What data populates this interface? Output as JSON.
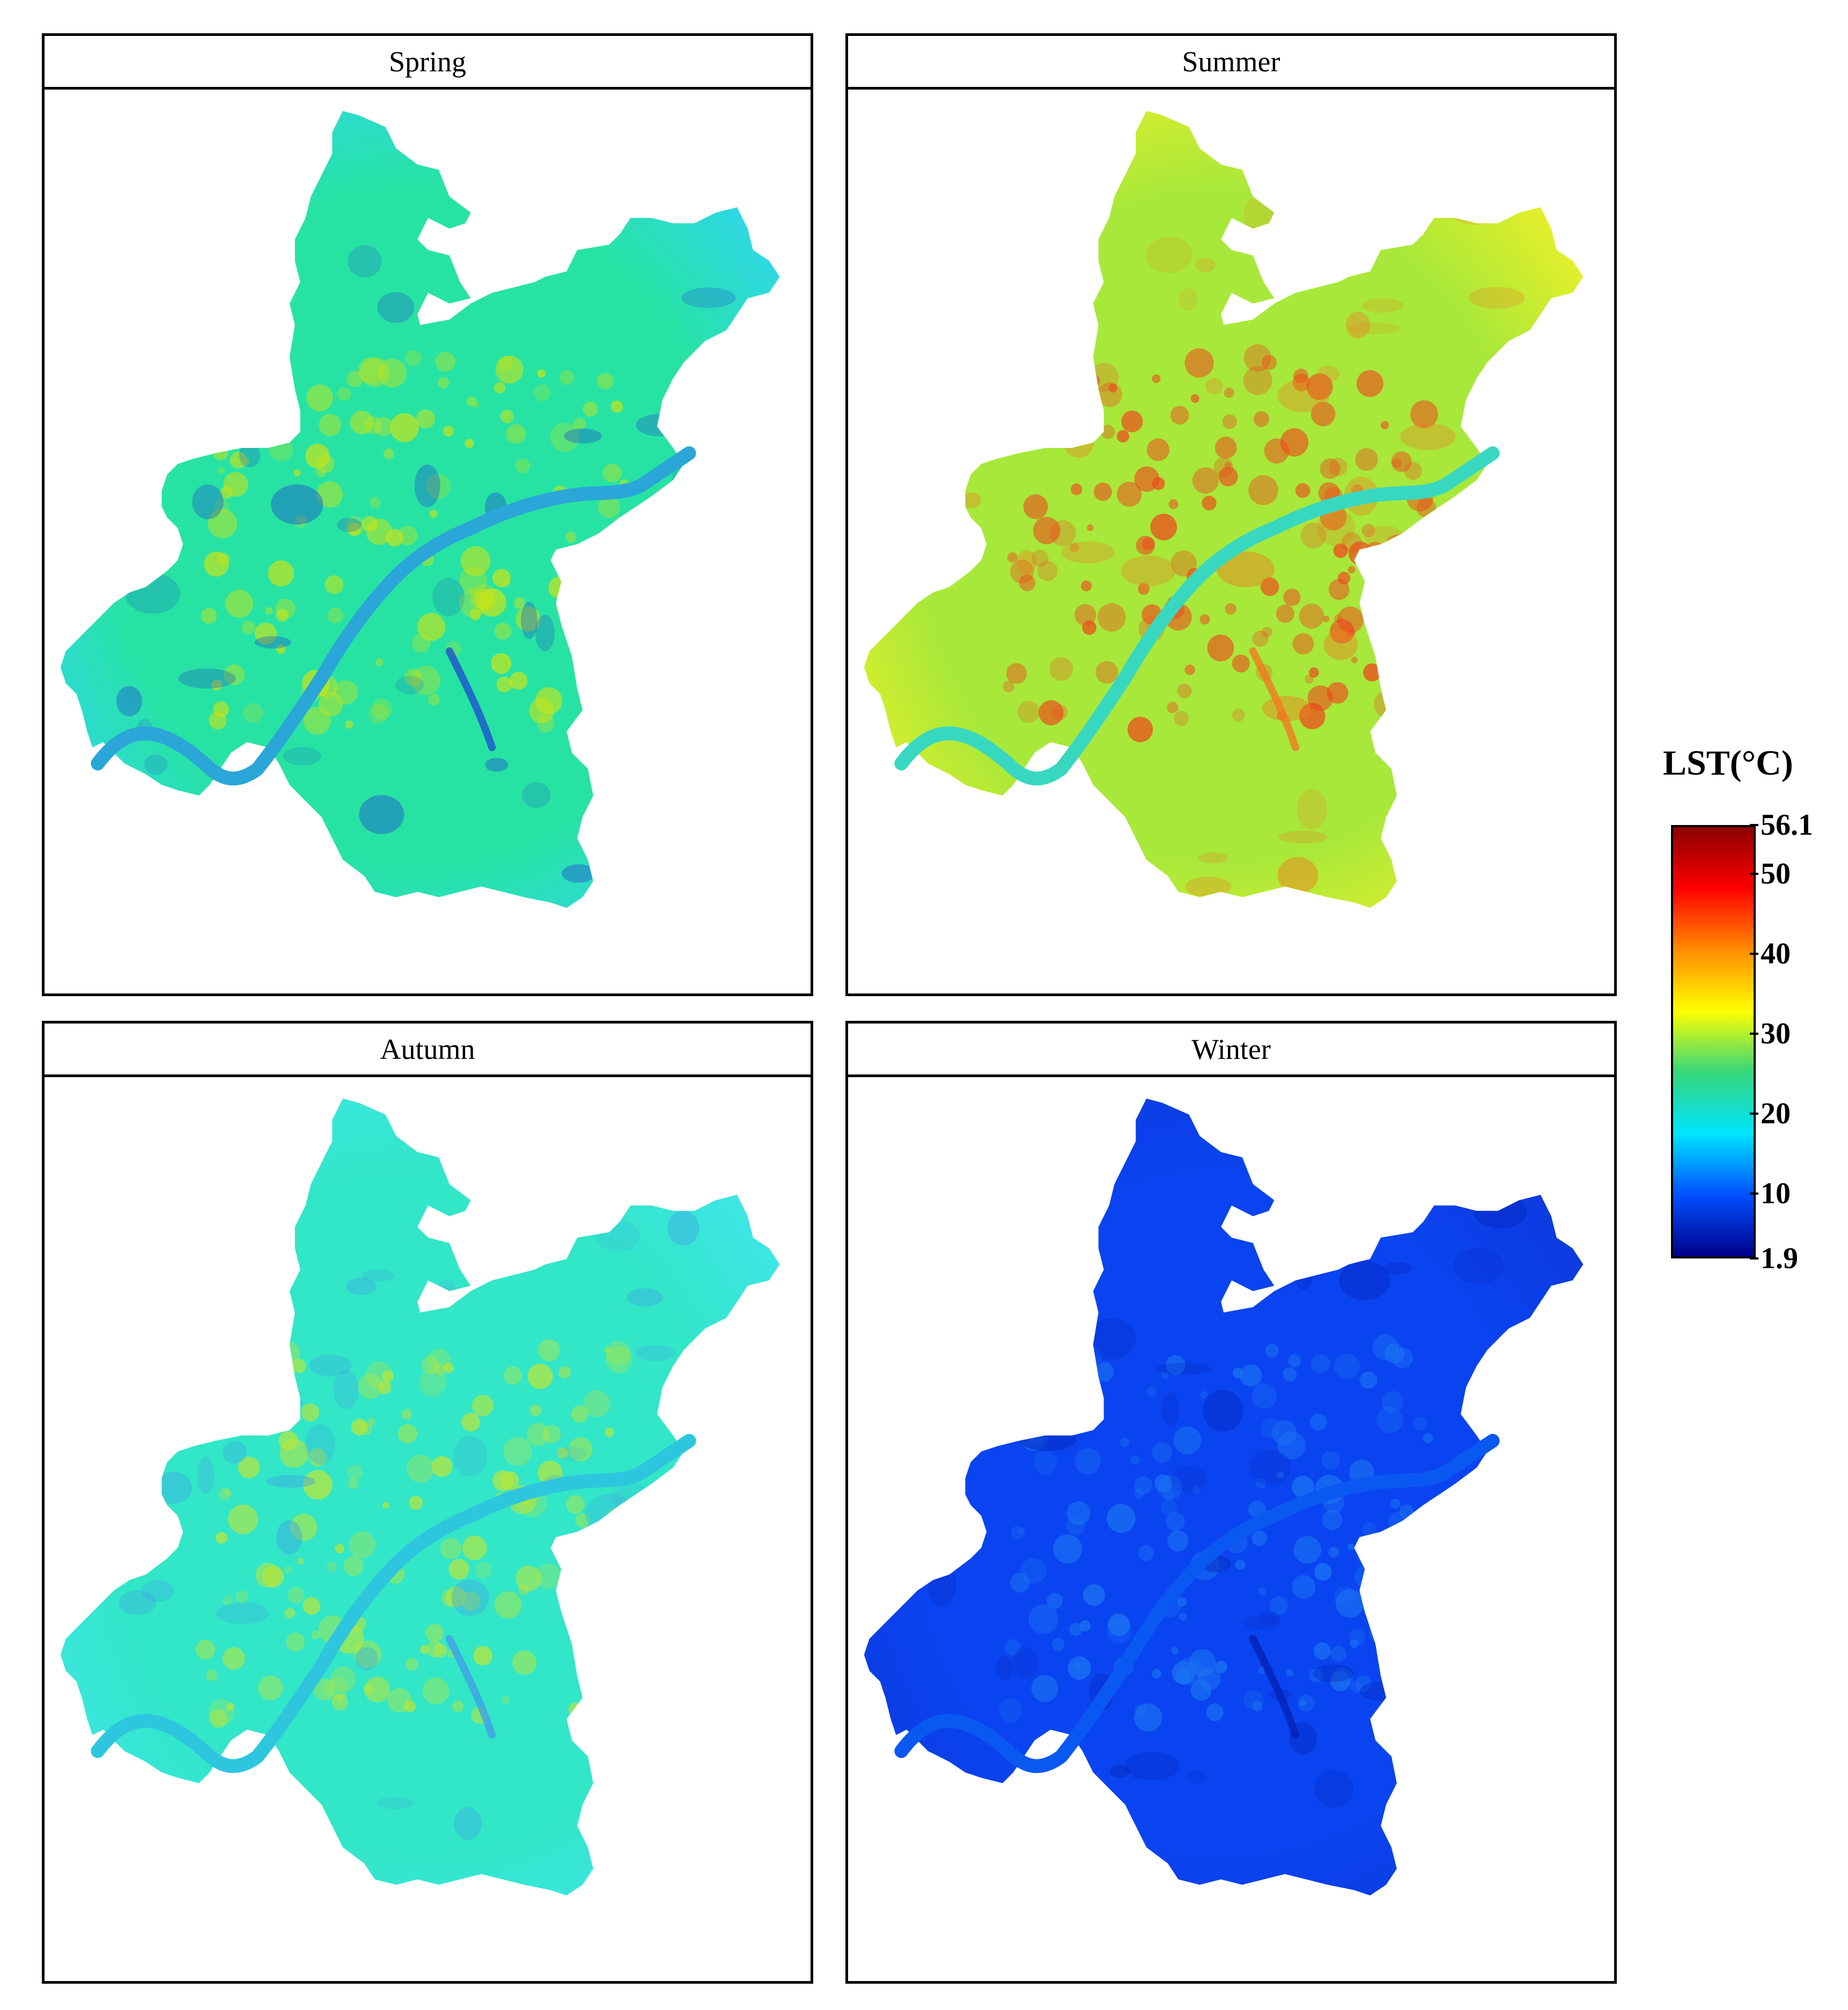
{
  "panels": [
    {
      "id": "spring",
      "title": "Spring",
      "base": "#27e3a3",
      "edge": "#30d7e6",
      "accent": "#c4e31c",
      "water": "#2aa6d8",
      "deep": "#1e4fd0"
    },
    {
      "id": "summer",
      "title": "Summer",
      "base": "#a8e83a",
      "edge": "#e6ef2a",
      "accent": "#f0471c",
      "water": "#38d8c0",
      "deep": "#f07a20"
    },
    {
      "id": "autumn",
      "title": "Autumn",
      "base": "#32e6c8",
      "edge": "#3ee6e6",
      "accent": "#b9e63a",
      "water": "#2ec6df",
      "deep": "#3fa0e6"
    },
    {
      "id": "winter",
      "title": "Winter",
      "base": "#0a44f0",
      "edge": "#0c3ae0",
      "accent": "#1c74f3",
      "water": "#0a58f2",
      "deep": "#0422b8"
    }
  ],
  "legend": {
    "title": "LST(°C)",
    "min": 1.9,
    "max": 56.1,
    "ticks": [
      {
        "value": 56.1,
        "label": "56.1"
      },
      {
        "value": 50,
        "label": "50"
      },
      {
        "value": 40,
        "label": "40"
      },
      {
        "value": 30,
        "label": "30"
      },
      {
        "value": 20,
        "label": "20"
      },
      {
        "value": 10,
        "label": "10"
      },
      {
        "value": 1.9,
        "label": "1.9"
      }
    ],
    "colors": [
      "#8b0000",
      "#ff0000",
      "#ff8c00",
      "#ffff00",
      "#36d67a",
      "#00e5ff",
      "#0050ff",
      "#00008b"
    ]
  }
}
